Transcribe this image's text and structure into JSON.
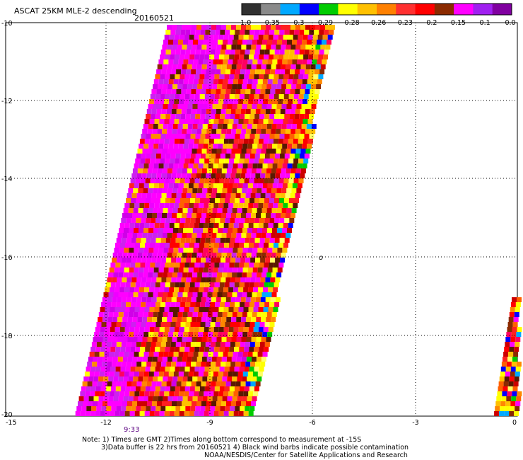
{
  "header": {
    "title": "ASCAT 25KM MLE-2 descending",
    "date": "20160521"
  },
  "colorbar": {
    "colors": [
      "#303030",
      "#8a8a8a",
      "#00a8ff",
      "#0000ff",
      "#00cc00",
      "#ffff00",
      "#ffc000",
      "#ff8000",
      "#ff3030",
      "#ff0000",
      "#8b2a00",
      "#ff00ff",
      "#a020f0",
      "#8000a0"
    ],
    "labels": [
      "-1.0",
      "-0.35",
      "-0.3",
      "-0.29",
      "-0.28",
      "-0.26",
      "-0.23",
      "-0.2",
      "-0.15",
      "-0.1",
      "0.0"
    ]
  },
  "axes": {
    "x_ticks": [
      "-15",
      "-12",
      "-9",
      "-6",
      "-3",
      "0"
    ],
    "y_ticks": [
      "-10",
      "-12",
      "-14",
      "-16",
      "-18",
      "-20"
    ]
  },
  "time_label": "9:33",
  "map_marker": "o",
  "footer": {
    "line1": "Note: 1) Times are GMT 2)Times along bottom correspond to measurement at -15S",
    "line2": "3)Data buffer is 22 hrs from 20160521 4) Black wind barbs indicate possible contamination",
    "line3": "NOAA/NESDIS/Center for Satellite Applications and Research"
  }
}
